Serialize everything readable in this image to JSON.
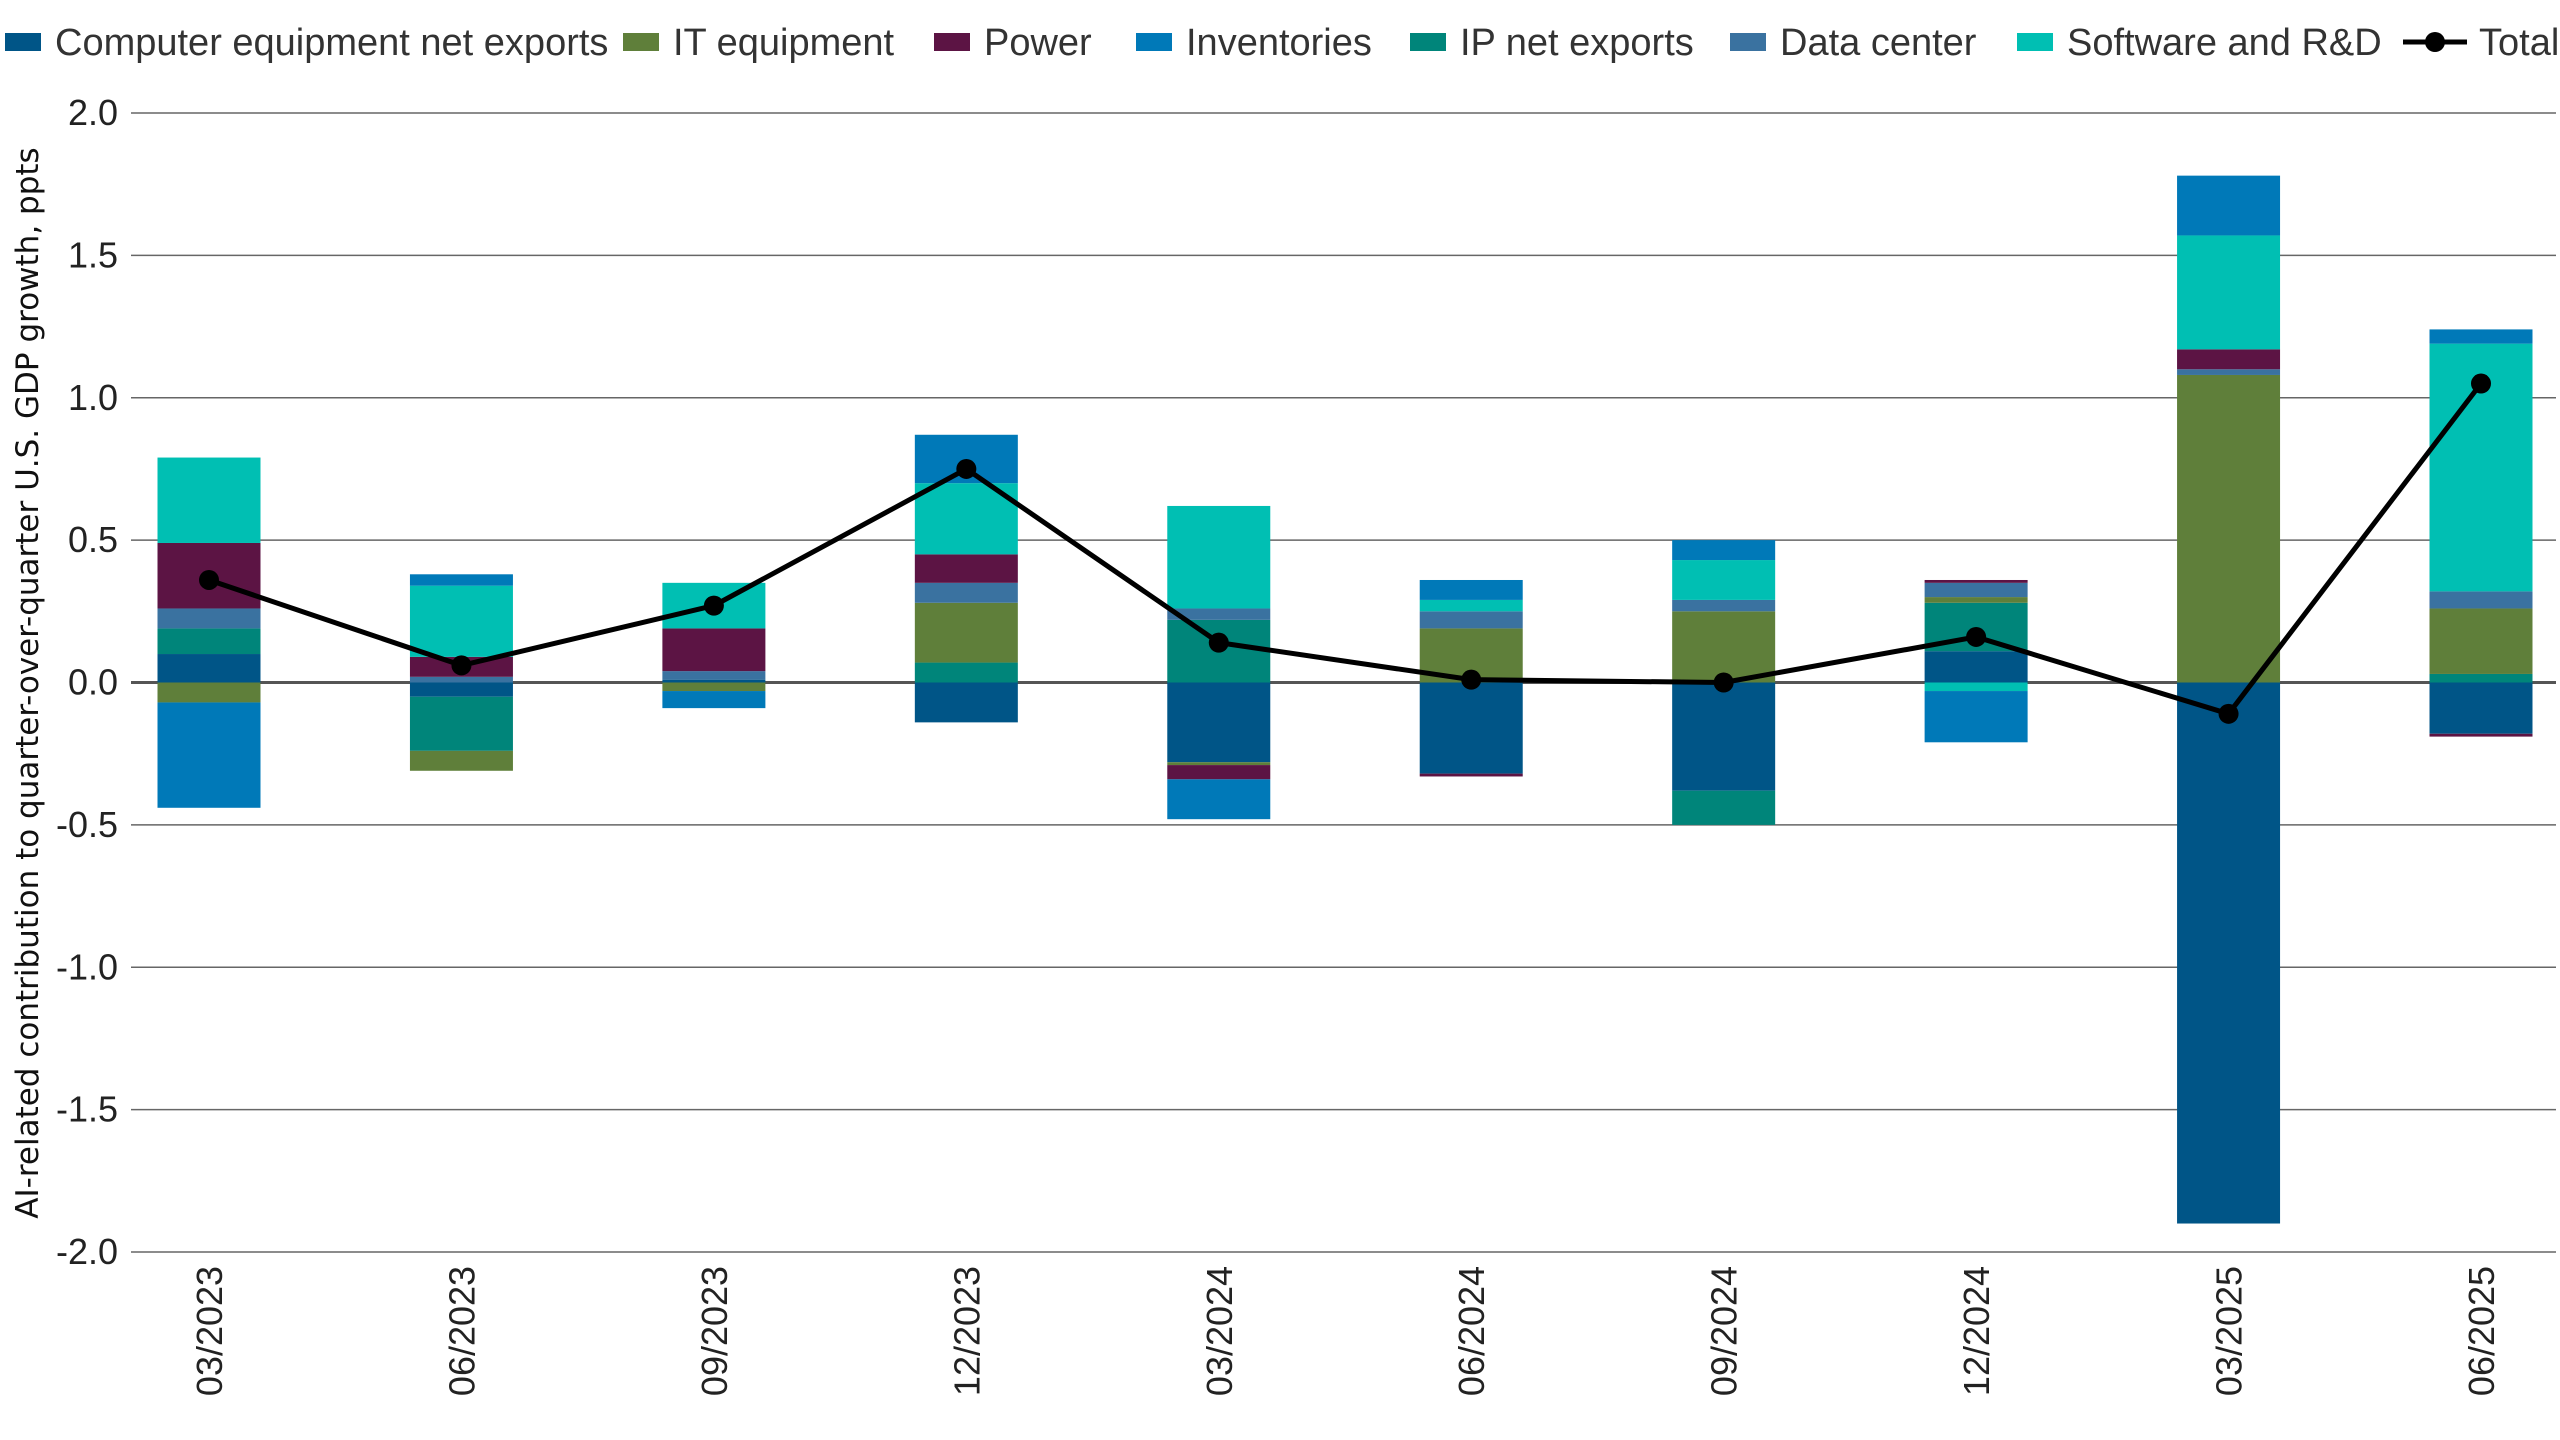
{
  "chart_data": {
    "type": "bar",
    "stacked": true,
    "title": "",
    "xlabel": "",
    "ylabel": "AI-related contribution to quarter-over-quarter U.S. GDP growth, ppts",
    "ylim": [
      -2.0,
      2.0
    ],
    "yticks": [
      "2.0",
      "1.5",
      "1.0",
      "0.5",
      "0.0",
      "-0.5",
      "-1.0",
      "-1.5",
      "-2.0"
    ],
    "ytick_values": [
      2.0,
      1.5,
      1.0,
      0.5,
      0.0,
      -0.5,
      -1.0,
      -1.5,
      -2.0
    ],
    "grid": true,
    "legend_position": "top",
    "categories": [
      "03/2023",
      "06/2023",
      "09/2023",
      "12/2023",
      "03/2024",
      "06/2024",
      "09/2024",
      "12/2024",
      "03/2025",
      "06/2025"
    ],
    "series": [
      {
        "name": "Computer equipment net exports",
        "color": "#005587",
        "values": [
          0.1,
          -0.05,
          0.01,
          -0.14,
          -0.28,
          -0.32,
          -0.38,
          0.11,
          -1.9,
          -0.18
        ]
      },
      {
        "name": "IP net exports",
        "color": "#00857a",
        "values": [
          0.09,
          -0.19,
          0.0,
          0.07,
          0.22,
          0.0,
          -0.12,
          0.17,
          0.0,
          0.03
        ]
      },
      {
        "name": "IT equipment",
        "color": "#5f7f3a",
        "values": [
          -0.07,
          -0.07,
          -0.03,
          0.21,
          -0.01,
          0.19,
          0.25,
          0.02,
          1.08,
          0.23
        ]
      },
      {
        "name": "Data center",
        "color": "#3a72a0",
        "values": [
          0.07,
          0.02,
          0.03,
          0.07,
          0.04,
          0.06,
          0.04,
          0.05,
          0.02,
          0.06
        ]
      },
      {
        "name": "Power",
        "color": "#5c1444",
        "values": [
          0.23,
          0.07,
          0.15,
          0.1,
          -0.05,
          -0.01,
          0.0,
          0.01,
          0.07,
          -0.01
        ]
      },
      {
        "name": "Software and R&D",
        "color": "#00bfb3",
        "values": [
          0.3,
          0.25,
          0.16,
          0.25,
          0.36,
          0.04,
          0.14,
          -0.03,
          0.4,
          0.87
        ]
      },
      {
        "name": "Inventories",
        "color": "#0079b8",
        "values": [
          -0.37,
          0.04,
          -0.06,
          0.17,
          -0.14,
          0.07,
          0.07,
          -0.18,
          0.21,
          0.05
        ]
      }
    ],
    "line": {
      "name": "Total",
      "color": "#000000",
      "values": [
        0.36,
        0.06,
        0.27,
        0.75,
        0.14,
        0.01,
        0.0,
        0.16,
        -0.11,
        1.05
      ]
    },
    "legend": [
      {
        "name": "Computer equipment net exports",
        "color": "#005587",
        "kind": "box"
      },
      {
        "name": "IT equipment",
        "color": "#5f7f3a",
        "kind": "box"
      },
      {
        "name": "Power",
        "color": "#5c1444",
        "kind": "box"
      },
      {
        "name": "Inventories",
        "color": "#0079b8",
        "kind": "box"
      },
      {
        "name": "IP net exports",
        "color": "#00857a",
        "kind": "box"
      },
      {
        "name": "Data center",
        "color": "#3a72a0",
        "kind": "box"
      },
      {
        "name": "Software and R&D",
        "color": "#00bfb3",
        "kind": "box"
      },
      {
        "name": "Total",
        "color": "#000000",
        "kind": "line"
      }
    ]
  }
}
